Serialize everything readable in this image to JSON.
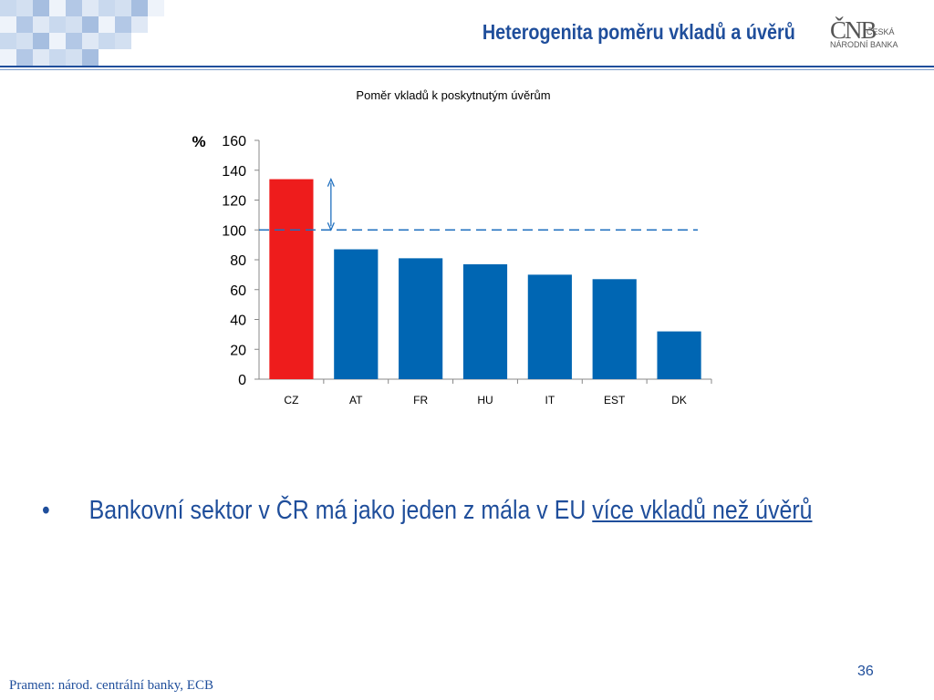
{
  "slide": {
    "title": "Heterogenita poměru vkladů a úvěrů",
    "logo": {
      "mark": "ČNB",
      "line1": "ČESKÁ",
      "line2": "NÁRODNÍ BANKA"
    },
    "bullet": {
      "marker": "•",
      "text": "Bankovní sektor v ČR má jako jeden z mála v EU ",
      "emphasis": "více vkladů než úvěrů"
    },
    "page_number": "36",
    "source": "Pramen: národ. centrální banky, ECB",
    "colors": {
      "accent": "#1f4e9b",
      "highlight_bar": "#ee1c1c",
      "bar": "#0066b3"
    }
  },
  "chart_data": {
    "type": "bar",
    "title": "Poměr vkladů k poskytnutým úvěrům",
    "ylabel": "%",
    "categories": [
      "CZ",
      "AT",
      "FR",
      "HU",
      "IT",
      "EST",
      "DK"
    ],
    "values": [
      134,
      87,
      81,
      77,
      70,
      67,
      32
    ],
    "highlight_index": 0,
    "ylim": [
      0,
      160
    ],
    "yticks": [
      "0",
      "20",
      "40",
      "60",
      "80",
      "100",
      "120",
      "140",
      "160"
    ],
    "reference_line": 100,
    "grid": false,
    "legend": "none"
  }
}
